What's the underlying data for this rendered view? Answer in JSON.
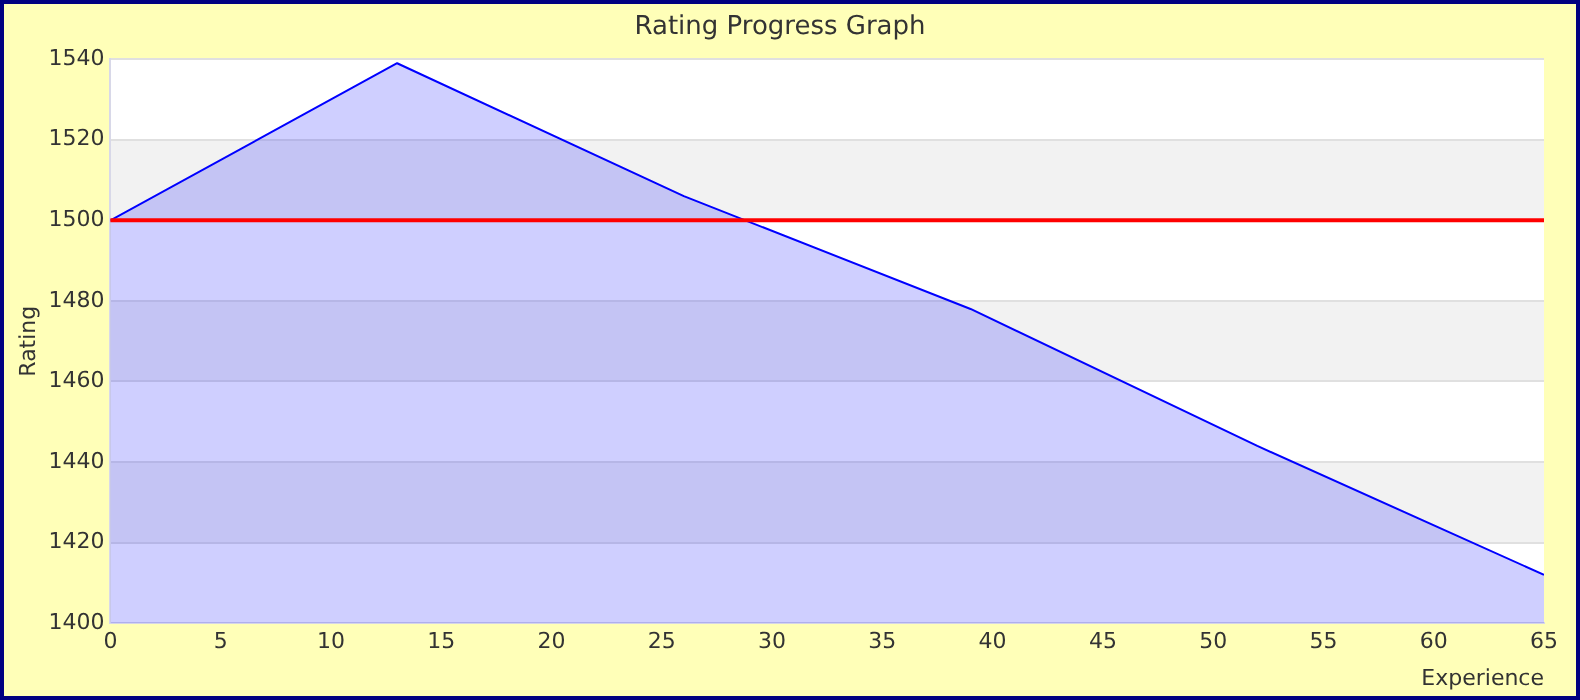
{
  "chart_data": {
    "type": "area",
    "title": "Rating Progress Graph",
    "xlabel": "Experience",
    "ylabel": "Rating",
    "x": [
      0,
      13,
      26,
      39,
      52,
      65
    ],
    "series": [
      {
        "color": "#0000ff",
        "values": [
          1500,
          1539,
          1506,
          1478,
          1444,
          1412
        ]
      }
    ],
    "xlim": [
      0,
      65
    ],
    "xticks": [
      0,
      5,
      10,
      15,
      20,
      25,
      30,
      35,
      40,
      45,
      50,
      55,
      60,
      65
    ],
    "ylim": [
      1400,
      1540
    ],
    "yticks": [
      1400,
      1420,
      1440,
      1460,
      1480,
      1500,
      1520,
      1540
    ],
    "ref_lines": [
      {
        "axis": "y",
        "value": 1500,
        "color": "#ff0000"
      }
    ],
    "grid": "y",
    "legend": false,
    "marker": "none"
  }
}
